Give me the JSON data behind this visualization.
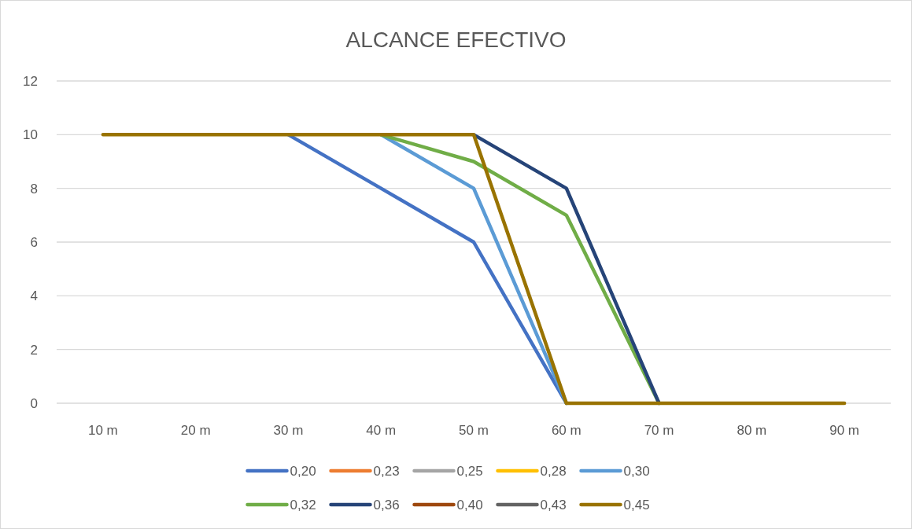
{
  "chart_data": {
    "type": "line",
    "title": "ALCANCE EFECTIVO",
    "categories": [
      "10 m",
      "20 m",
      "30 m",
      "40 m",
      "50 m",
      "60 m",
      "70 m",
      "80 m",
      "90 m"
    ],
    "ylim": [
      0,
      12
    ],
    "yticks": [
      0,
      2,
      4,
      6,
      8,
      10,
      12
    ],
    "grid": "y",
    "legend": "bottom",
    "marker": "none",
    "line_style": "solid",
    "series": [
      {
        "name": "0,20",
        "color": "#4472c4",
        "values": [
          null,
          null,
          10,
          8,
          6,
          0,
          null,
          null,
          null
        ]
      },
      {
        "name": "0,23",
        "color": "#ed7d31",
        "values": [
          null,
          null,
          null,
          null,
          null,
          null,
          null,
          null,
          null
        ]
      },
      {
        "name": "0,25",
        "color": "#a5a5a5",
        "values": [
          null,
          null,
          null,
          null,
          null,
          null,
          null,
          null,
          null
        ]
      },
      {
        "name": "0,28",
        "color": "#ffc000",
        "values": [
          null,
          null,
          null,
          null,
          null,
          null,
          null,
          null,
          null
        ]
      },
      {
        "name": "0,30",
        "color": "#5b9bd5",
        "values": [
          null,
          null,
          null,
          10,
          8,
          0,
          null,
          null,
          null
        ]
      },
      {
        "name": "0,32",
        "color": "#70ad47",
        "values": [
          null,
          null,
          null,
          10,
          9,
          7,
          0,
          null,
          null
        ]
      },
      {
        "name": "0,36",
        "color": "#264478",
        "values": [
          null,
          null,
          null,
          null,
          10,
          8,
          0,
          null,
          null
        ]
      },
      {
        "name": "0,40",
        "color": "#9e480e",
        "values": [
          null,
          null,
          null,
          null,
          null,
          null,
          null,
          null,
          null
        ]
      },
      {
        "name": "0,43",
        "color": "#636363",
        "values": [
          null,
          null,
          null,
          null,
          null,
          null,
          null,
          null,
          null
        ]
      },
      {
        "name": "0,45",
        "color": "#997300",
        "values": [
          10,
          10,
          10,
          10,
          10,
          0,
          0,
          0,
          0
        ]
      }
    ]
  }
}
